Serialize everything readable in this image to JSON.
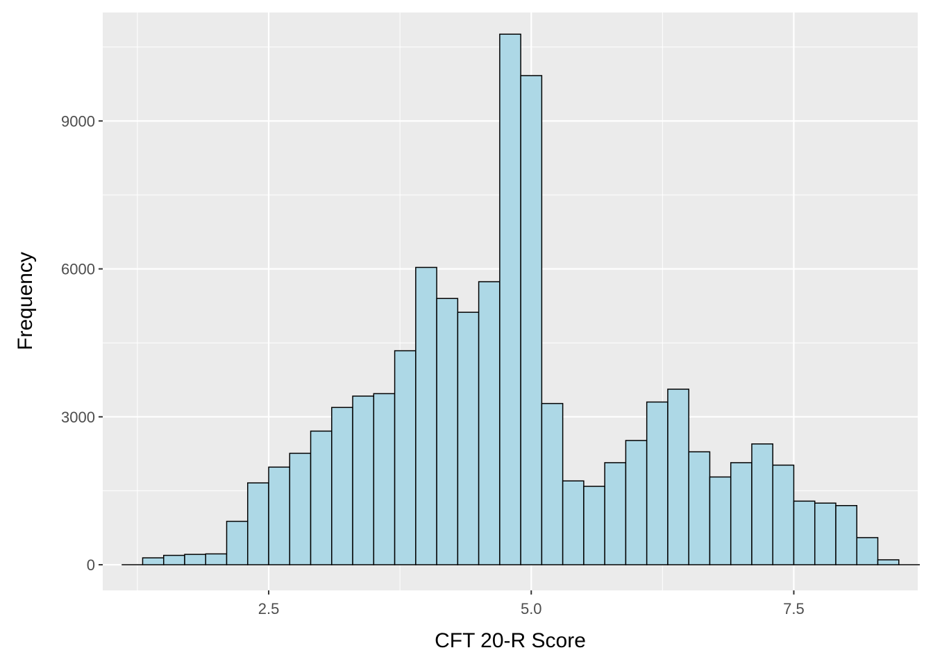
{
  "chart_data": {
    "type": "bar",
    "subtype": "histogram",
    "title": "",
    "xlabel": "CFT 20-R Score",
    "ylabel": "Frequency",
    "x_ticks": [
      2.5,
      5.0,
      7.5
    ],
    "x_tick_labels": [
      "2.5",
      "5.0",
      "7.5"
    ],
    "y_ticks": [
      0,
      3000,
      6000,
      9000
    ],
    "y_tick_labels": [
      "0",
      "3000",
      "6000",
      "9000"
    ],
    "xlim": [
      0.92,
      8.68
    ],
    "ylim": [
      -520,
      11200
    ],
    "grid": true,
    "bin_width": 0.2,
    "bin_edges_start": 1.1,
    "values": [
      0,
      140,
      190,
      210,
      220,
      880,
      1660,
      1980,
      2260,
      2710,
      3190,
      3420,
      3470,
      4340,
      6030,
      5400,
      5120,
      5740,
      10760,
      9920,
      3270,
      1700,
      1590,
      2070,
      2520,
      3300,
      3560,
      2290,
      1780,
      2070,
      2450,
      2020,
      1290,
      1250,
      1200,
      550,
      100,
      0
    ],
    "colors": {
      "panel": "#EBEBEB",
      "grid_major": "#FFFFFF",
      "bar_fill": "#ADD8E6",
      "bar_stroke": "#000000"
    }
  }
}
